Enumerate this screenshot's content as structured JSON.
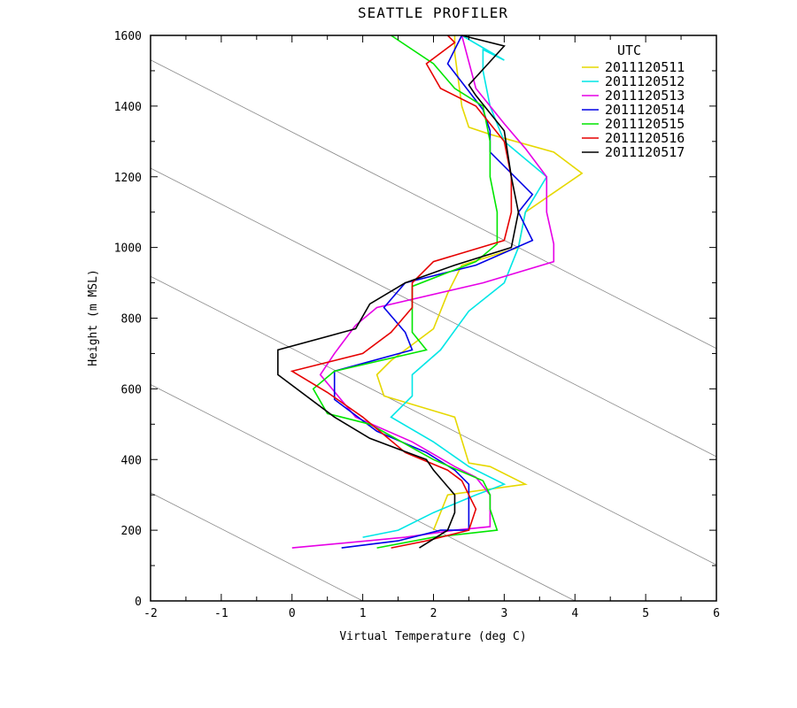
{
  "chart_data": {
    "type": "line",
    "title": "SEATTLE PROFILER",
    "xlabel": "Virtual Temperature (deg C)",
    "ylabel": "Height (m MSL)",
    "xlim": [
      -2,
      6
    ],
    "ylim": [
      0,
      1600
    ],
    "x_ticks": [
      "-2",
      "-1",
      "0",
      "1",
      "2",
      "3",
      "4",
      "5",
      "6"
    ],
    "y_ticks": [
      "0",
      "200",
      "400",
      "600",
      "800",
      "1000",
      "1200",
      "1400",
      "1600"
    ],
    "legend_title": "UTC",
    "legend_position": "top-right",
    "background_lines": {
      "description_slope_per_100m": -0.98,
      "x_at_height_0": [
        1,
        4,
        7,
        10,
        13
      ]
    },
    "series": [
      {
        "name": "2011120511",
        "color": "#e6d800",
        "points": [
          [
            2.0,
            200
          ],
          [
            2.2,
            300
          ],
          [
            3.3,
            330
          ],
          [
            2.8,
            380
          ],
          [
            2.5,
            390
          ],
          [
            2.3,
            520
          ],
          [
            1.3,
            580
          ],
          [
            1.2,
            640
          ],
          [
            1.4,
            680
          ],
          [
            2.0,
            770
          ],
          [
            2.2,
            870
          ],
          [
            2.4,
            950
          ],
          [
            3.2,
            1000
          ],
          [
            3.3,
            1100
          ],
          [
            4.1,
            1210
          ],
          [
            3.7,
            1270
          ],
          [
            2.8,
            1320
          ],
          [
            2.5,
            1340
          ],
          [
            2.4,
            1400
          ],
          [
            2.3,
            1550
          ],
          [
            2.3,
            1600
          ]
        ]
      },
      {
        "name": "2011120512",
        "color": "#00e6e6",
        "points": [
          [
            1.0,
            180
          ],
          [
            1.5,
            200
          ],
          [
            2.0,
            250
          ],
          [
            2.6,
            300
          ],
          [
            3.0,
            330
          ],
          [
            2.5,
            380
          ],
          [
            2.0,
            450
          ],
          [
            1.4,
            520
          ],
          [
            1.7,
            580
          ],
          [
            1.7,
            640
          ],
          [
            2.1,
            710
          ],
          [
            2.5,
            820
          ],
          [
            3.0,
            900
          ],
          [
            3.2,
            1000
          ],
          [
            3.3,
            1100
          ],
          [
            3.6,
            1200
          ],
          [
            3.0,
            1300
          ],
          [
            2.8,
            1400
          ],
          [
            2.7,
            1500
          ],
          [
            2.7,
            1560
          ],
          [
            3.0,
            1530
          ],
          [
            2.4,
            1600
          ]
        ]
      },
      {
        "name": "2011120513",
        "color": "#e600e6",
        "points": [
          [
            0.0,
            150
          ],
          [
            1.6,
            180
          ],
          [
            2.3,
            200
          ],
          [
            2.8,
            210
          ],
          [
            2.8,
            250
          ],
          [
            2.8,
            300
          ],
          [
            2.6,
            350
          ],
          [
            2.3,
            380
          ],
          [
            1.7,
            450
          ],
          [
            0.9,
            520
          ],
          [
            0.4,
            640
          ],
          [
            0.6,
            700
          ],
          [
            0.9,
            780
          ],
          [
            1.2,
            830
          ],
          [
            2.7,
            900
          ],
          [
            3.7,
            960
          ],
          [
            3.7,
            1010
          ],
          [
            3.6,
            1100
          ],
          [
            3.6,
            1200
          ],
          [
            3.3,
            1280
          ],
          [
            3.0,
            1350
          ],
          [
            2.6,
            1450
          ],
          [
            2.4,
            1600
          ]
        ]
      },
      {
        "name": "2011120514",
        "color": "#0000e6",
        "points": [
          [
            0.7,
            150
          ],
          [
            1.5,
            170
          ],
          [
            2.1,
            200
          ],
          [
            2.5,
            200
          ],
          [
            2.5,
            250
          ],
          [
            2.5,
            300
          ],
          [
            2.5,
            330
          ],
          [
            2.3,
            370
          ],
          [
            1.9,
            420
          ],
          [
            1.2,
            480
          ],
          [
            0.6,
            570
          ],
          [
            0.6,
            650
          ],
          [
            1.7,
            710
          ],
          [
            1.6,
            760
          ],
          [
            1.3,
            830
          ],
          [
            1.6,
            900
          ],
          [
            2.6,
            950
          ],
          [
            3.4,
            1020
          ],
          [
            3.2,
            1100
          ],
          [
            3.4,
            1150
          ],
          [
            2.8,
            1270
          ],
          [
            2.8,
            1330
          ],
          [
            2.7,
            1390
          ],
          [
            2.2,
            1520
          ],
          [
            2.4,
            1600
          ]
        ]
      },
      {
        "name": "2011120515",
        "color": "#00e600",
        "points": [
          [
            1.2,
            150
          ],
          [
            2.0,
            180
          ],
          [
            2.9,
            200
          ],
          [
            2.8,
            260
          ],
          [
            2.8,
            300
          ],
          [
            2.7,
            340
          ],
          [
            2.0,
            400
          ],
          [
            1.1,
            500
          ],
          [
            0.5,
            530
          ],
          [
            0.3,
            600
          ],
          [
            0.6,
            650
          ],
          [
            1.9,
            710
          ],
          [
            1.7,
            760
          ],
          [
            1.7,
            830
          ],
          [
            1.7,
            890
          ],
          [
            2.6,
            960
          ],
          [
            2.9,
            1010
          ],
          [
            2.9,
            1100
          ],
          [
            2.8,
            1200
          ],
          [
            2.8,
            1300
          ],
          [
            2.7,
            1400
          ],
          [
            2.3,
            1450
          ],
          [
            2.0,
            1520
          ],
          [
            1.4,
            1600
          ]
        ]
      },
      {
        "name": "2011120516",
        "color": "#e60000",
        "points": [
          [
            1.4,
            150
          ],
          [
            1.9,
            170
          ],
          [
            2.5,
            200
          ],
          [
            2.6,
            260
          ],
          [
            2.5,
            300
          ],
          [
            2.4,
            340
          ],
          [
            2.2,
            370
          ],
          [
            1.6,
            420
          ],
          [
            1.0,
            520
          ],
          [
            0.5,
            590
          ],
          [
            0.0,
            650
          ],
          [
            1.0,
            700
          ],
          [
            1.4,
            760
          ],
          [
            1.7,
            830
          ],
          [
            1.7,
            900
          ],
          [
            2.0,
            960
          ],
          [
            3.0,
            1020
          ],
          [
            3.1,
            1100
          ],
          [
            3.1,
            1200
          ],
          [
            3.0,
            1300
          ],
          [
            2.6,
            1400
          ],
          [
            2.1,
            1450
          ],
          [
            1.9,
            1520
          ],
          [
            2.3,
            1580
          ],
          [
            2.2,
            1600
          ]
        ]
      },
      {
        "name": "2011120517",
        "color": "#000000",
        "points": [
          [
            1.8,
            150
          ],
          [
            2.2,
            200
          ],
          [
            2.3,
            250
          ],
          [
            2.3,
            300
          ],
          [
            2.0,
            370
          ],
          [
            1.9,
            400
          ],
          [
            1.1,
            460
          ],
          [
            0.6,
            520
          ],
          [
            -0.2,
            640
          ],
          [
            -0.2,
            710
          ],
          [
            0.9,
            770
          ],
          [
            1.1,
            840
          ],
          [
            1.6,
            900
          ],
          [
            2.3,
            950
          ],
          [
            3.1,
            1000
          ],
          [
            3.2,
            1100
          ],
          [
            3.1,
            1200
          ],
          [
            3.0,
            1330
          ],
          [
            2.6,
            1430
          ],
          [
            2.5,
            1460
          ],
          [
            3.0,
            1570
          ],
          [
            2.4,
            1600
          ]
        ]
      }
    ]
  }
}
